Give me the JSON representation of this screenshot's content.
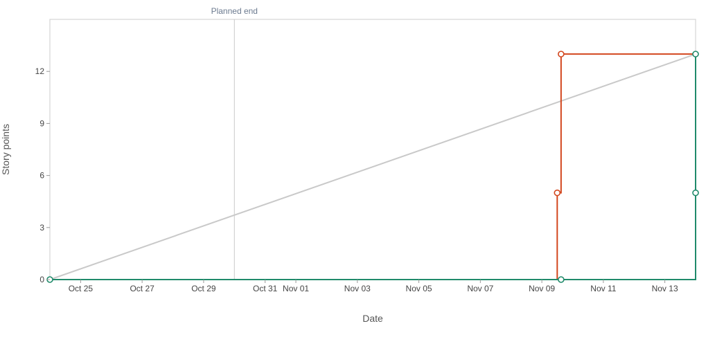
{
  "chart_data": {
    "type": "line",
    "title": "",
    "xlabel": "Date",
    "ylabel": "Story points",
    "xlim": [
      "2023-10-24",
      "2023-11-14"
    ],
    "ylim": [
      0,
      15
    ],
    "yticks": [
      0,
      3,
      6,
      9,
      12
    ],
    "xticks": [
      {
        "date": "2023-10-25",
        "label": "Oct 25"
      },
      {
        "date": "2023-10-27",
        "label": "Oct 27"
      },
      {
        "date": "2023-10-29",
        "label": "Oct 29"
      },
      {
        "date": "2023-10-31",
        "label": "Oct 31"
      },
      {
        "date": "2023-11-01",
        "label": "Nov 01"
      },
      {
        "date": "2023-11-03",
        "label": "Nov 03"
      },
      {
        "date": "2023-11-05",
        "label": "Nov 05"
      },
      {
        "date": "2023-11-07",
        "label": "Nov 07"
      },
      {
        "date": "2023-11-09",
        "label": "Nov 09"
      },
      {
        "date": "2023-11-11",
        "label": "Nov 11"
      },
      {
        "date": "2023-11-13",
        "label": "Nov 13"
      }
    ],
    "annotations": [
      {
        "type": "vline",
        "x": "2023-10-30 00:00",
        "label": "Planned end",
        "color": "#c8c8c8"
      }
    ],
    "grid": false,
    "series": [
      {
        "color": "#c9c9c9",
        "step": false,
        "markers": [],
        "points": [
          {
            "x": "2023-10-24 00:00",
            "y": 0
          },
          {
            "x": "2023-11-14 00:00",
            "y": 13
          }
        ]
      },
      {
        "color": "#d2461d",
        "step": true,
        "markers": [
          1,
          2
        ],
        "points": [
          {
            "x": "2023-10-24 00:00",
            "y": 0
          },
          {
            "x": "2023-11-09 12:00",
            "y": 5
          },
          {
            "x": "2023-11-09 15:00",
            "y": 13
          },
          {
            "x": "2023-11-14 00:00",
            "y": 5
          }
        ]
      },
      {
        "color": "#1f8a6a",
        "step": true,
        "markers": [
          0,
          1,
          2,
          3
        ],
        "points": [
          {
            "x": "2023-10-24 00:00",
            "y": 0
          },
          {
            "x": "2023-11-09 15:00",
            "y": 0
          },
          {
            "x": "2023-11-14 00:00",
            "y": 13
          },
          {
            "x": "2023-11-14 00:00",
            "y": 5
          }
        ]
      }
    ]
  }
}
